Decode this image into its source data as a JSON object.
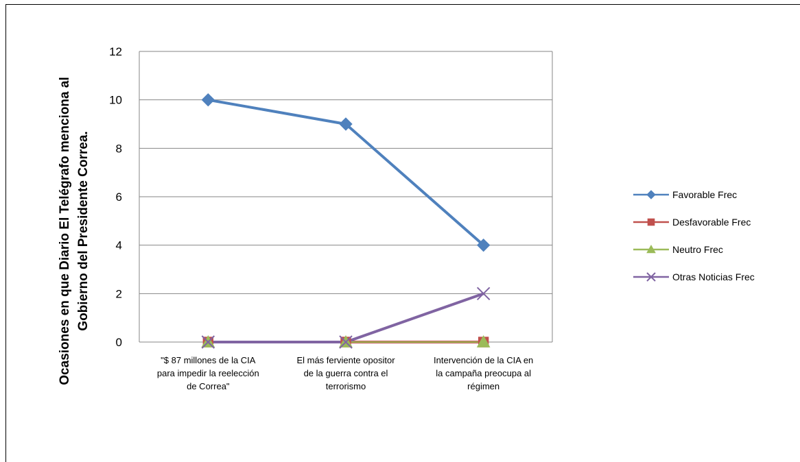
{
  "chart_data": {
    "type": "line",
    "categories": [
      [
        "\"$ 87 millones de la CIA",
        "para impedir la reelección",
        "de Correa\""
      ],
      [
        "El más ferviente opositor",
        "de la guerra contra el",
        "terrorismo"
      ],
      [
        "Intervención de la CIA en",
        "la campaña preocupa al",
        "régimen"
      ]
    ],
    "ylabel": [
      "Ocasiones en que Diario El Telégrafo menciona al",
      "Gobierno del Presidente Correa."
    ],
    "ylim": [
      0,
      12
    ],
    "yticks": [
      0,
      2,
      4,
      6,
      8,
      10,
      12
    ],
    "grid": true,
    "legend_position": "right",
    "series": [
      {
        "name": "Favorable  Frec",
        "values": [
          10,
          9,
          4
        ],
        "color": "#4f81bd",
        "marker": "diamond"
      },
      {
        "name": "Desfavorable  Frec",
        "values": [
          0,
          0,
          0
        ],
        "color": "#c0504d",
        "marker": "square"
      },
      {
        "name": "Neutro Frec",
        "values": [
          0,
          0,
          0
        ],
        "color": "#9bbb59",
        "marker": "triangle"
      },
      {
        "name": "Otras Noticias  Frec",
        "values": [
          0,
          0,
          2
        ],
        "color": "#8064a2",
        "marker": "x"
      }
    ]
  }
}
